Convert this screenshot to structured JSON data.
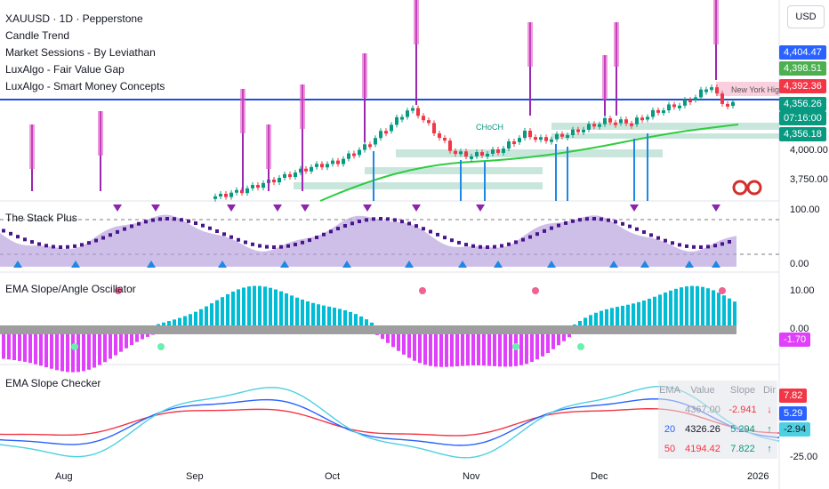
{
  "header": {
    "symbol_line": "XAUUSD · 1D · Pepperstone",
    "indicators": [
      "Candle Trend",
      "Market Sessions - By Leviathan",
      "LuxAlgo - Fair Value Gap",
      "LuxAlgo - Smart Money Concepts"
    ],
    "currency": "USD"
  },
  "price_axis": {
    "labels": [
      "4,000.00",
      "3,750.00"
    ],
    "badges": [
      {
        "text": "4,404.47",
        "color": "#2962ff"
      },
      {
        "text": "4,398.51",
        "color": "#4caf50"
      },
      {
        "text": "4,392.36",
        "color": "#f23645"
      },
      {
        "text": "4,356.26",
        "color": "#089981"
      },
      {
        "text": "07:16:00",
        "color": "#089981"
      },
      {
        "text": "4,356.18",
        "color": "#089981"
      }
    ]
  },
  "annotations": {
    "choch": "CHoCH",
    "new_york_high": "New York High"
  },
  "panes": {
    "stack": {
      "label": "The Stack Plus",
      "axis": [
        "100.00",
        "0.00"
      ]
    },
    "ema_osc": {
      "label": "EMA Slope/Angle Oscillator",
      "axis": [
        "10.00",
        "0.00"
      ],
      "badge": "-1.70",
      "badge_color": "#e040fb"
    },
    "slope_checker": {
      "label": "EMA Slope Checker",
      "axis": "-25.00",
      "badges": [
        {
          "text": "7.82",
          "color": "#f23645"
        },
        {
          "text": "5.29",
          "color": "#2962ff"
        },
        {
          "text": "-2.94",
          "color": "#4dd0e1"
        }
      ],
      "table": {
        "headers": [
          "EMA",
          "Value",
          "Slope",
          "Dir"
        ],
        "rows": [
          [
            "",
            "4367.00",
            "-2.941",
            "↓"
          ],
          [
            "20",
            "4326.26",
            "5.294",
            "↑"
          ],
          [
            "50",
            "4194.42",
            "7.822",
            "↑"
          ]
        ]
      }
    }
  },
  "time_axis": [
    "Aug",
    "Sep",
    "Oct",
    "Nov",
    "Dec",
    "2026"
  ],
  "colors": {
    "bull": "#089981",
    "bear": "#f23645",
    "ema50": "#2ecc40",
    "purple": "#9c27b0",
    "pink": "#e040fb",
    "teal": "#00bcd4"
  }
}
